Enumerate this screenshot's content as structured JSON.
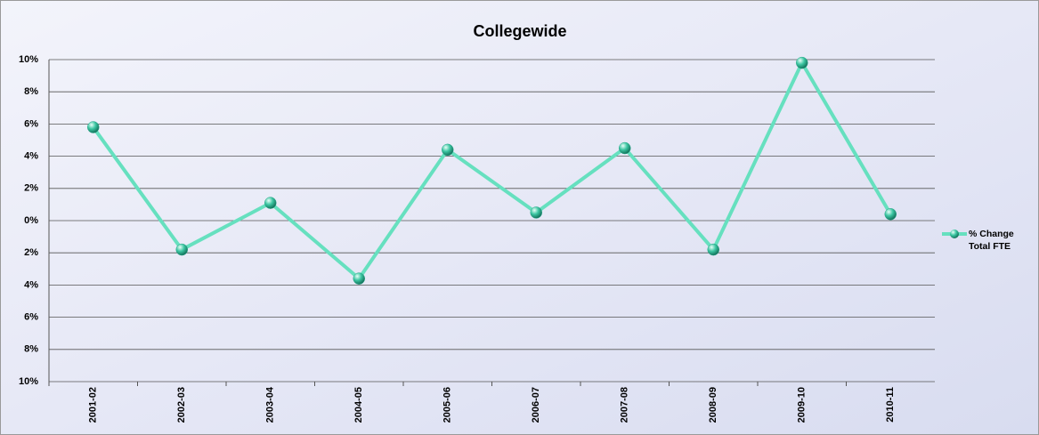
{
  "chart_data": {
    "type": "line",
    "title": "Collegewide",
    "categories": [
      "2001-02",
      "2002-03",
      "2003-04",
      "2004-05",
      "2005-06",
      "2006-07",
      "2007-08",
      "2008-09",
      "2009-10",
      "2010-11"
    ],
    "series": [
      {
        "name": "% Change Total FTE",
        "color": "#66e0bf",
        "marker_color": "#2aa88a",
        "values": [
          5.8,
          -1.8,
          1.1,
          -3.6,
          4.4,
          0.5,
          4.5,
          -1.8,
          9.8,
          0.4
        ]
      }
    ],
    "ylim": [
      -10,
      10
    ],
    "yticks": [
      {
        "value": -10,
        "label": "10%"
      },
      {
        "value": -8,
        "label": "8%"
      },
      {
        "value": -6,
        "label": "6%"
      },
      {
        "value": -4,
        "label": "4%"
      },
      {
        "value": -2,
        "label": "2%"
      },
      {
        "value": 0,
        "label": "0%"
      },
      {
        "value": 2,
        "label": "2%"
      },
      {
        "value": 4,
        "label": "4%"
      },
      {
        "value": 6,
        "label": "6%"
      },
      {
        "value": 8,
        "label": "8%"
      },
      {
        "value": 10,
        "label": "10%"
      }
    ],
    "negative_tick_color": "#e00000",
    "grid": true,
    "legend": "right"
  }
}
